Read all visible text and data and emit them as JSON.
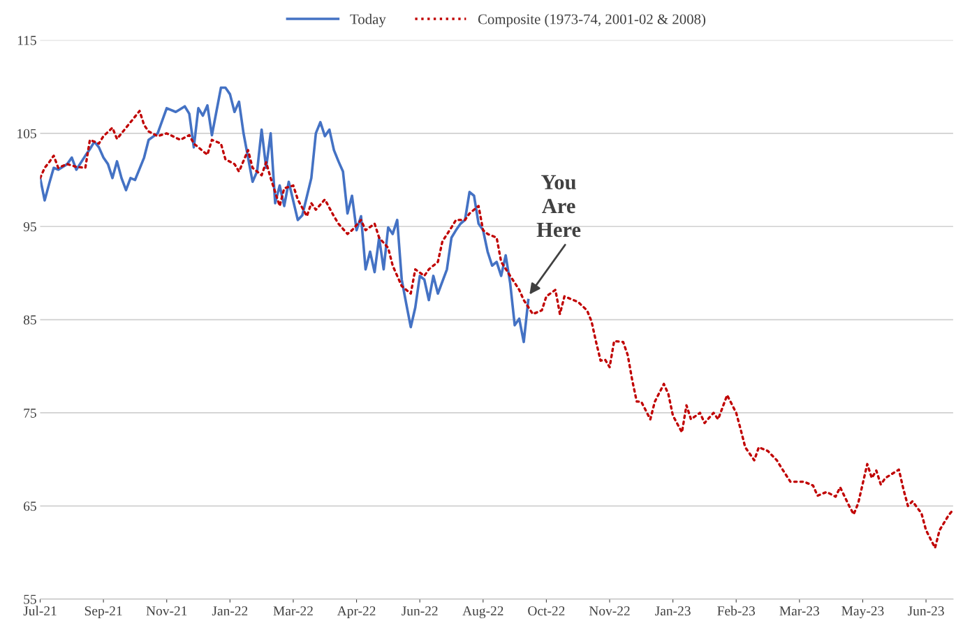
{
  "chart_data": {
    "type": "line",
    "categories": [
      "Jul-21",
      null,
      null,
      null,
      null,
      null,
      null,
      null,
      null,
      null,
      null,
      null,
      null,
      null,
      "Sep-21",
      null,
      null,
      null,
      null,
      null,
      null,
      null,
      null,
      null,
      null,
      null,
      null,
      null,
      "Nov-21",
      null,
      null,
      null,
      null,
      null,
      null,
      null,
      null,
      null,
      null,
      null,
      null,
      null,
      "Jan-22",
      null,
      null,
      null,
      null,
      null,
      null,
      null,
      null,
      null,
      null,
      null,
      null,
      null,
      "Mar-22",
      null,
      null,
      null,
      null,
      null,
      null,
      null,
      null,
      null,
      null,
      null,
      null,
      null,
      "Apr-22",
      null,
      null,
      null,
      null,
      null,
      null,
      null,
      null,
      null,
      null,
      null,
      null,
      null,
      "Jun-22",
      null,
      null,
      null,
      null,
      null,
      null,
      null,
      null,
      null,
      null,
      null,
      null,
      null,
      "Aug-22",
      null,
      null,
      null,
      null,
      null,
      null,
      null,
      null,
      null,
      null,
      null,
      null,
      null,
      "Oct-22",
      null,
      null,
      null,
      null,
      null,
      null,
      null,
      null,
      null,
      null,
      null,
      null,
      null,
      "Nov-22",
      null,
      null,
      null,
      null,
      null,
      null,
      null,
      null,
      null,
      null,
      null,
      null,
      null,
      "Jan-23",
      null,
      null,
      null,
      null,
      null,
      null,
      null,
      null,
      null,
      null,
      null,
      null,
      null,
      "Feb-23",
      null,
      null,
      null,
      null,
      null,
      null,
      null,
      null,
      null,
      null,
      null,
      null,
      null,
      "Mar-23",
      null,
      null,
      null,
      null,
      null,
      null,
      null,
      null,
      null,
      null,
      null,
      null,
      null,
      "May-23",
      null,
      null,
      null,
      null,
      null,
      null,
      null,
      null,
      null,
      null,
      null,
      null,
      null,
      "Jun-23",
      null,
      null,
      null,
      null,
      null,
      null
    ],
    "ylim": [
      55,
      115
    ],
    "yticks": [
      55,
      65,
      75,
      85,
      95,
      105,
      115
    ],
    "grid": "y",
    "legend": "top",
    "marker": "none",
    "annotations": [
      "You\nAre\nHere"
    ],
    "series": [
      {
        "name": "Today",
        "color": "#4472c4",
        "line_style": "solid",
        "values": [
          100.2,
          97.8,
          99.6,
          101.3,
          101.1,
          null,
          101.7,
          102.4,
          101.1,
          null,
          102.6,
          103.3,
          104.1,
          103.5,
          102.4,
          101.7,
          100.2,
          102.0,
          100.2,
          98.9,
          100.2,
          100.0,
          null,
          102.4,
          104.3,
          null,
          105.0,
          null,
          107.7,
          null,
          107.3,
          null,
          107.9,
          107.1,
          103.5,
          107.7,
          106.9,
          108.0,
          104.8,
          null,
          109.9,
          109.9,
          109.2,
          107.3,
          108.4,
          105.0,
          null,
          99.8,
          100.9,
          105.4,
          101.3,
          105.0,
          97.5,
          99.4,
          97.2,
          99.8,
          null,
          95.7,
          96.2,
          null,
          100.2,
          105.0,
          106.2,
          104.7,
          105.4,
          103.2,
          102.0,
          100.9,
          96.4,
          98.3,
          94.6,
          96.1,
          90.4,
          92.3,
          90.1,
          93.8,
          90.4,
          94.9,
          94.2,
          95.7,
          89.3,
          86.7,
          84.2,
          86.3,
          89.7,
          89.3,
          87.1,
          89.7,
          87.8,
          null,
          90.4,
          93.8,
          94.6,
          95.3,
          95.7,
          98.7,
          98.3,
          95.3,
          94.6,
          92.3,
          90.8,
          91.2,
          89.7,
          91.9,
          88.9,
          84.4,
          85.1,
          82.6,
          87.1,
          null,
          null,
          null,
          null,
          null,
          null,
          null,
          null,
          null,
          null,
          null,
          null,
          null,
          null,
          null,
          null,
          null,
          null,
          null,
          null,
          null,
          null,
          null,
          null,
          null,
          null,
          null,
          null,
          null,
          null,
          null,
          null,
          null,
          null,
          null,
          null,
          null,
          null,
          null,
          null,
          null,
          null,
          null,
          null,
          null,
          null,
          null,
          null,
          null,
          null,
          null,
          null,
          null,
          null,
          null,
          null,
          null,
          null,
          null,
          null,
          null,
          null,
          null,
          null,
          null,
          null,
          null,
          null,
          null,
          null,
          null,
          null,
          null,
          null,
          null,
          null,
          null,
          null,
          null,
          null,
          null,
          null,
          null,
          null,
          null,
          null,
          null,
          null,
          null,
          null,
          null,
          null,
          null,
          null
        ]
      },
      {
        "name": "Composite (1973-74, 2001-02 & 2008)",
        "color": "#c00000",
        "line_style": "dotted",
        "values": [
          100.2,
          101.3,
          101.9,
          102.6,
          101.3,
          null,
          101.7,
          null,
          101.4,
          null,
          101.3,
          104.3,
          null,
          103.9,
          104.7,
          null,
          105.6,
          104.4,
          105.0,
          null,
          106.2,
          null,
          107.4,
          105.9,
          105.2,
          null,
          104.7,
          null,
          105.0,
          null,
          null,
          104.3,
          null,
          104.8,
          103.9,
          null,
          null,
          102.7,
          104.3,
          null,
          103.9,
          102.2,
          null,
          101.7,
          100.9,
          null,
          103.2,
          101.3,
          null,
          100.5,
          101.9,
          100.2,
          98.7,
          97.2,
          99.1,
          null,
          99.4,
          97.9,
          null,
          96.1,
          97.5,
          96.8,
          null,
          97.9,
          null,
          96.1,
          95.3,
          null,
          94.2,
          94.6,
          null,
          95.7,
          94.6,
          null,
          95.3,
          93.8,
          null,
          92.7,
          90.8,
          null,
          88.6,
          null,
          87.8,
          90.4,
          null,
          89.7,
          90.4,
          null,
          91.2,
          93.4,
          null,
          94.9,
          95.7,
          null,
          95.7,
          96.4,
          null,
          97.2,
          94.6,
          94.2,
          null,
          93.8,
          91.2,
          null,
          89.7,
          null,
          88.2,
          87.1,
          null,
          85.6,
          null,
          86.0,
          87.5,
          null,
          88.2,
          85.6,
          87.5,
          null,
          87.1,
          86.9,
          null,
          86.0,
          84.8,
          82.6,
          80.6,
          80.7,
          79.9,
          82.7,
          null,
          82.6,
          81.2,
          78.5,
          76.2,
          76.2,
          null,
          74.3,
          76.2,
          null,
          78.1,
          77.0,
          74.7,
          null,
          72.9,
          75.8,
          74.3,
          null,
          75.0,
          73.9,
          null,
          75.0,
          74.3,
          null,
          76.9,
          null,
          75.0,
          73.2,
          71.3,
          null,
          69.9,
          71.3,
          null,
          70.9,
          null,
          69.9,
          69.1,
          null,
          67.6,
          null,
          null,
          67.6,
          null,
          67.2,
          66.1,
          null,
          66.5,
          null,
          66.0,
          67.0,
          null,
          65.0,
          64.1,
          65.3,
          null,
          69.5,
          68.0,
          68.8,
          67.3,
          68.0,
          null,
          null,
          68.9,
          66.8,
          65.0,
          65.5,
          null,
          64.2,
          62.4,
          null,
          60.5,
          62.4,
          null,
          64.0,
          64.6
        ]
      }
    ]
  }
}
